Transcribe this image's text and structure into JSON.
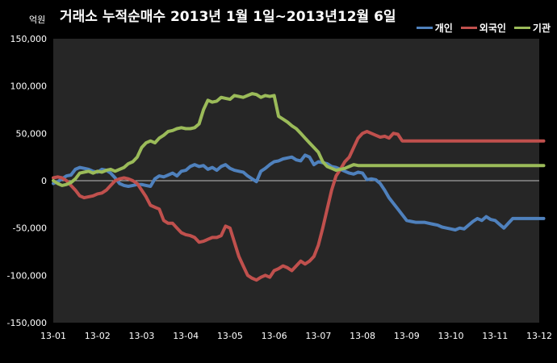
{
  "chart_data": {
    "type": "line",
    "title": "거래소 누적순매수 2013년 1월 1일~2013년12월 6일",
    "unit_label": "억원",
    "x_labels": [
      "13-01",
      "13-02",
      "13-03",
      "13-04",
      "13-05",
      "13-06",
      "13-07",
      "13-08",
      "13-09",
      "13-10",
      "13-11",
      "13-12"
    ],
    "y_ticks": [
      "150,000",
      "100,000",
      "50,000",
      "0",
      "-50,000",
      "-100,000",
      "-150,000"
    ],
    "ylim": [
      -150000,
      150000
    ],
    "grid": false,
    "legend_position": "top-right",
    "series": [
      {
        "name": "개인",
        "color": "#4f81bd",
        "x": [
          0,
          0.1,
          0.2,
          0.3,
          0.4,
          0.5,
          0.6,
          0.7,
          0.8,
          0.9,
          1.0,
          1.1,
          1.2,
          1.3,
          1.4,
          1.5,
          1.6,
          1.7,
          1.8,
          1.9,
          2.0,
          2.1,
          2.2,
          2.3,
          2.4,
          2.5,
          2.6,
          2.7,
          2.8,
          2.9,
          3.0,
          3.1,
          3.2,
          3.3,
          3.4,
          3.5,
          3.6,
          3.7,
          3.8,
          3.9,
          4.0,
          4.1,
          4.2,
          4.3,
          4.4,
          4.5,
          4.6,
          4.7,
          4.8,
          4.9,
          5.0,
          5.1,
          5.2,
          5.3,
          5.4,
          5.5,
          5.6,
          5.7,
          5.8,
          5.9,
          6.0,
          6.1,
          6.2,
          6.3,
          6.4,
          6.5,
          6.6,
          6.7,
          6.8,
          6.9,
          7.0,
          7.1,
          7.2,
          7.3,
          7.4,
          7.5,
          7.6,
          7.7,
          7.8,
          7.9,
          8.0,
          8.1,
          8.2,
          8.3,
          8.4,
          8.5,
          8.6,
          8.7,
          8.8,
          8.9,
          9.0,
          9.1,
          9.2,
          9.3,
          9.4,
          9.5,
          9.6,
          9.7,
          9.8,
          9.9,
          10.0,
          10.1,
          10.2,
          10.3,
          10.4,
          10.5,
          10.6,
          10.7,
          10.8,
          10.9,
          11.0,
          11.1
        ],
        "values": [
          -3000,
          -1000,
          2000,
          5000,
          6000,
          12000,
          14000,
          13000,
          12000,
          10000,
          9000,
          12000,
          11000,
          8000,
          3000,
          -3000,
          -5000,
          -6000,
          -5000,
          -4000,
          -4000,
          -5000,
          -6000,
          2000,
          5000,
          4000,
          6000,
          8000,
          5000,
          10000,
          11000,
          15000,
          17000,
          15000,
          16000,
          12000,
          14000,
          11000,
          15000,
          17000,
          13000,
          11000,
          10000,
          9000,
          5000,
          2000,
          -1000,
          10000,
          13000,
          17000,
          20000,
          21000,
          23000,
          24000,
          25000,
          22000,
          21000,
          27000,
          25000,
          17000,
          20000,
          19000,
          18000,
          15000,
          14000,
          12000,
          10000,
          8000,
          7000,
          9000,
          8000,
          1000,
          2000,
          1000,
          -3000,
          -10000,
          -18000,
          -24000,
          -30000,
          -36000,
          -42000,
          -43000,
          -44000,
          -44000,
          -44000,
          -45000,
          -46000,
          -47000,
          -49000,
          -50000,
          -51000,
          -52000,
          -50000,
          -51000,
          -47000,
          -43000,
          -40000,
          -42000,
          -38000,
          -41000,
          -42000,
          -46000,
          -50000,
          -45000,
          -40000,
          -40000,
          -40000,
          -40000,
          -40000,
          -40000,
          -40000,
          -40000
        ],
        "note": "read off chart"
      },
      {
        "name": "외국인",
        "color": "#c0504d",
        "x": [
          0,
          0.1,
          0.2,
          0.3,
          0.4,
          0.5,
          0.6,
          0.7,
          0.8,
          0.9,
          1.0,
          1.1,
          1.2,
          1.3,
          1.4,
          1.5,
          1.6,
          1.7,
          1.8,
          1.9,
          2.0,
          2.1,
          2.2,
          2.3,
          2.4,
          2.5,
          2.6,
          2.7,
          2.8,
          2.9,
          3.0,
          3.1,
          3.2,
          3.3,
          3.4,
          3.5,
          3.6,
          3.7,
          3.8,
          3.9,
          4.0,
          4.1,
          4.2,
          4.3,
          4.4,
          4.5,
          4.6,
          4.7,
          4.8,
          4.9,
          5.0,
          5.1,
          5.2,
          5.3,
          5.4,
          5.5,
          5.6,
          5.7,
          5.8,
          5.9,
          6.0,
          6.1,
          6.2,
          6.3,
          6.4,
          6.5,
          6.6,
          6.7,
          6.8,
          6.9,
          7.0,
          7.1,
          7.2,
          7.3,
          7.4,
          7.5,
          7.6,
          7.7,
          7.8,
          7.9,
          8.0,
          8.1,
          8.2,
          8.3,
          8.4,
          8.5,
          8.6,
          8.7,
          8.8,
          8.9,
          9.0,
          9.1,
          9.2,
          9.3,
          9.4,
          9.5,
          9.6,
          9.7,
          9.8,
          9.9,
          10.0,
          10.1,
          10.2,
          10.3,
          10.4,
          10.5,
          10.6,
          10.7,
          10.8,
          10.9,
          11.0,
          11.1
        ],
        "values": [
          3000,
          4000,
          3000,
          0,
          -5000,
          -10000,
          -16000,
          -18000,
          -17000,
          -16000,
          -14000,
          -13000,
          -10000,
          -5000,
          0,
          2000,
          3000,
          2000,
          0,
          -3000,
          -10000,
          -17000,
          -26000,
          -28000,
          -30000,
          -42000,
          -45000,
          -45000,
          -50000,
          -55000,
          -57000,
          -58000,
          -60000,
          -65000,
          -64000,
          -62000,
          -60000,
          -60000,
          -58000,
          -48000,
          -50000,
          -65000,
          -80000,
          -90000,
          -100000,
          -103000,
          -105000,
          -102000,
          -100000,
          -102000,
          -95000,
          -93000,
          -90000,
          -92000,
          -95000,
          -90000,
          -85000,
          -88000,
          -85000,
          -80000,
          -68000,
          -50000,
          -30000,
          -10000,
          5000,
          12000,
          20000,
          25000,
          35000,
          45000,
          50000,
          52000,
          50000,
          48000,
          46000,
          47000,
          45000,
          50000,
          49000,
          42000,
          42000,
          42000,
          42000,
          42000,
          42000,
          42000,
          42000,
          42000,
          42000,
          42000,
          42000,
          42000,
          42000,
          42000,
          42000,
          42000,
          42000,
          42000,
          42000,
          42000,
          42000,
          42000,
          42000,
          42000,
          42000,
          42000,
          42000,
          42000,
          42000,
          42000,
          42000,
          42000
        ],
        "note": "read off chart"
      },
      {
        "name": "기관",
        "color": "#9bbb59",
        "x": [
          0,
          0.1,
          0.2,
          0.3,
          0.4,
          0.5,
          0.6,
          0.7,
          0.8,
          0.9,
          1.0,
          1.1,
          1.2,
          1.3,
          1.4,
          1.5,
          1.6,
          1.7,
          1.8,
          1.9,
          2.0,
          2.1,
          2.2,
          2.3,
          2.4,
          2.5,
          2.6,
          2.7,
          2.8,
          2.9,
          3.0,
          3.1,
          3.2,
          3.3,
          3.4,
          3.5,
          3.6,
          3.7,
          3.8,
          3.9,
          4.0,
          4.1,
          4.2,
          4.3,
          4.4,
          4.5,
          4.6,
          4.7,
          4.8,
          4.9,
          5.0,
          5.1,
          5.2,
          5.3,
          5.4,
          5.5,
          5.6,
          5.7,
          5.8,
          5.9,
          6.0,
          6.1,
          6.2,
          6.3,
          6.4,
          6.5,
          6.6,
          6.7,
          6.8,
          6.9,
          7.0,
          7.1,
          7.2,
          7.3,
          7.4,
          7.5,
          7.6,
          7.7,
          7.8,
          7.9,
          8.0,
          8.1,
          8.2,
          8.3,
          8.4,
          8.5,
          8.6,
          8.7,
          8.8,
          8.9,
          9.0,
          9.1,
          9.2,
          9.3,
          9.4,
          9.5,
          9.6,
          9.7,
          9.8,
          9.9,
          10.0,
          10.1,
          10.2,
          10.3,
          10.4,
          10.5,
          10.6,
          10.7,
          10.8,
          10.9,
          11.0,
          11.1
        ],
        "values": [
          0,
          -3000,
          -5000,
          -4000,
          -2000,
          2000,
          8000,
          9000,
          10000,
          8000,
          10000,
          9000,
          11000,
          12000,
          10000,
          12000,
          14000,
          18000,
          20000,
          25000,
          35000,
          40000,
          42000,
          40000,
          45000,
          48000,
          52000,
          53000,
          55000,
          56000,
          55000,
          55000,
          56000,
          60000,
          75000,
          85000,
          83000,
          84000,
          88000,
          87000,
          86000,
          90000,
          89000,
          88000,
          90000,
          92000,
          91000,
          88000,
          90000,
          89000,
          90000,
          68000,
          65000,
          62000,
          58000,
          55000,
          50000,
          45000,
          40000,
          35000,
          30000,
          20000,
          15000,
          13000,
          11000,
          12000,
          13000,
          15000,
          17000,
          16000,
          16000,
          16000,
          16000,
          16000,
          16000,
          16000,
          16000,
          16000,
          16000,
          16000,
          16000,
          16000,
          16000,
          16000,
          16000,
          16000,
          16000,
          16000,
          16000,
          16000,
          16000,
          16000,
          16000,
          16000,
          16000,
          16000,
          16000,
          16000,
          16000,
          16000,
          16000,
          16000,
          16000,
          16000,
          16000,
          16000,
          16000,
          16000,
          16000,
          16000,
          16000,
          16000
        ],
        "note": "read off chart"
      }
    ]
  },
  "colors": {
    "background": "#000000",
    "plot_area": "#262626",
    "text": "#ffffff"
  }
}
